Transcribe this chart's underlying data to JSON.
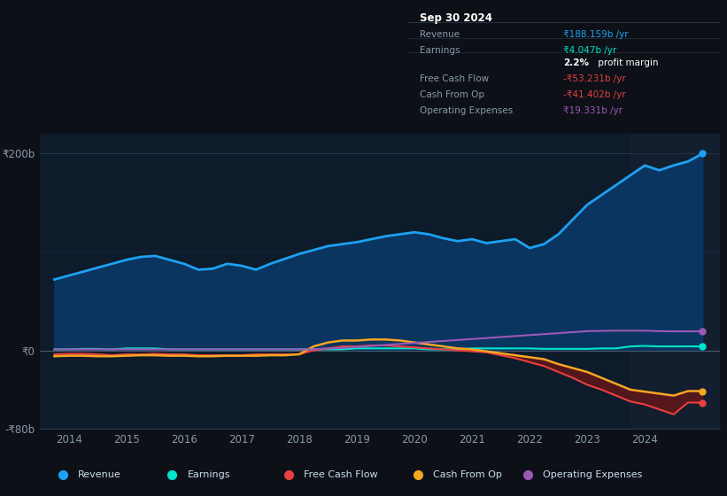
{
  "bg_color": "#0d1117",
  "plot_bg_color": "#0d1b2a",
  "grid_color": "#1e3050",
  "zero_line_color": "#4a5a6a",
  "years": [
    2013.75,
    2014.0,
    2014.25,
    2014.5,
    2014.75,
    2015.0,
    2015.25,
    2015.5,
    2015.75,
    2016.0,
    2016.25,
    2016.5,
    2016.75,
    2017.0,
    2017.25,
    2017.5,
    2017.75,
    2018.0,
    2018.25,
    2018.5,
    2018.75,
    2019.0,
    2019.25,
    2019.5,
    2019.75,
    2020.0,
    2020.25,
    2020.5,
    2020.75,
    2021.0,
    2021.25,
    2021.5,
    2021.75,
    2022.0,
    2022.25,
    2022.5,
    2022.75,
    2023.0,
    2023.25,
    2023.5,
    2023.75,
    2024.0,
    2024.25,
    2024.5,
    2024.75,
    2025.0
  ],
  "revenue": [
    72,
    76,
    80,
    84,
    88,
    92,
    95,
    96,
    92,
    88,
    82,
    83,
    88,
    86,
    82,
    88,
    93,
    98,
    102,
    106,
    108,
    110,
    113,
    116,
    118,
    120,
    118,
    114,
    111,
    113,
    109,
    111,
    113,
    104,
    108,
    118,
    133,
    148,
    158,
    168,
    178,
    188,
    183,
    188,
    192,
    200
  ],
  "earnings": [
    1,
    1,
    1.5,
    1.5,
    1,
    2,
    2,
    2,
    1,
    1,
    1,
    1,
    1,
    1,
    1,
    1,
    1,
    1,
    1,
    1,
    1,
    2,
    2,
    2,
    2,
    2,
    1,
    1,
    1,
    2,
    2,
    2,
    2,
    2,
    1.5,
    1.5,
    1.5,
    1.5,
    2,
    2,
    4,
    4.5,
    4,
    4,
    4.047,
    4.047
  ],
  "free_cash_flow": [
    -4,
    -3.5,
    -3.5,
    -4,
    -5,
    -4,
    -4,
    -3.5,
    -4,
    -4,
    -5,
    -5,
    -5,
    -5,
    -4,
    -4,
    -4,
    -4,
    0,
    2,
    4,
    4,
    5,
    5,
    4,
    3,
    2,
    1,
    0,
    -1,
    -2,
    -5,
    -8,
    -12,
    -16,
    -22,
    -28,
    -35,
    -40,
    -46,
    -52,
    -55,
    -60,
    -65,
    -53,
    -53.231
  ],
  "cash_from_op": [
    -6,
    -5.5,
    -5.5,
    -6,
    -6,
    -5.5,
    -5,
    -5,
    -5.5,
    -5.5,
    -6,
    -6,
    -5.5,
    -5.5,
    -5.5,
    -5,
    -5,
    -4,
    4,
    8,
    10,
    10,
    11,
    11,
    10,
    8,
    6,
    4,
    2,
    1,
    -1,
    -3,
    -5,
    -7,
    -9,
    -14,
    -18,
    -22,
    -28,
    -34,
    -40,
    -42,
    -44,
    -46,
    -41.402,
    -41.402
  ],
  "operating_expenses": [
    1,
    1,
    1,
    1,
    1,
    1,
    1,
    1,
    1,
    1,
    1,
    1,
    1,
    1,
    1,
    1,
    1,
    1,
    1,
    2,
    2.5,
    3.5,
    4.5,
    5.5,
    6.5,
    7.5,
    8.5,
    9.5,
    10.5,
    11.5,
    12.5,
    13.5,
    14.5,
    15.5,
    16.5,
    17.5,
    18.5,
    19.5,
    19.8,
    20,
    20,
    20,
    19.5,
    19.331,
    19.331,
    19.331
  ],
  "highlight_x": 2023.75,
  "ylim": [
    -80,
    220
  ],
  "xmin": 2013.5,
  "xmax": 2025.3,
  "xticks": [
    2014,
    2015,
    2016,
    2017,
    2018,
    2019,
    2020,
    2021,
    2022,
    2023,
    2024
  ],
  "revenue_color": "#1da1f2",
  "revenue_fill_color": "#0a3560",
  "earnings_color": "#00e5cc",
  "free_cash_flow_color": "#e84040",
  "cash_from_op_color": "#f5a623",
  "operating_expenses_color": "#9b59b6",
  "neg_fill_color": "#6b1515",
  "highlight_color": "#1a2a3a",
  "tooltip_title": "Sep 30 2024",
  "legend_items": [
    {
      "label": "Revenue",
      "color": "#1da1f2"
    },
    {
      "label": "Earnings",
      "color": "#00e5cc"
    },
    {
      "label": "Free Cash Flow",
      "color": "#e84040"
    },
    {
      "label": "Cash From Op",
      "color": "#f5a623"
    },
    {
      "label": "Operating Expenses",
      "color": "#9b59b6"
    }
  ]
}
